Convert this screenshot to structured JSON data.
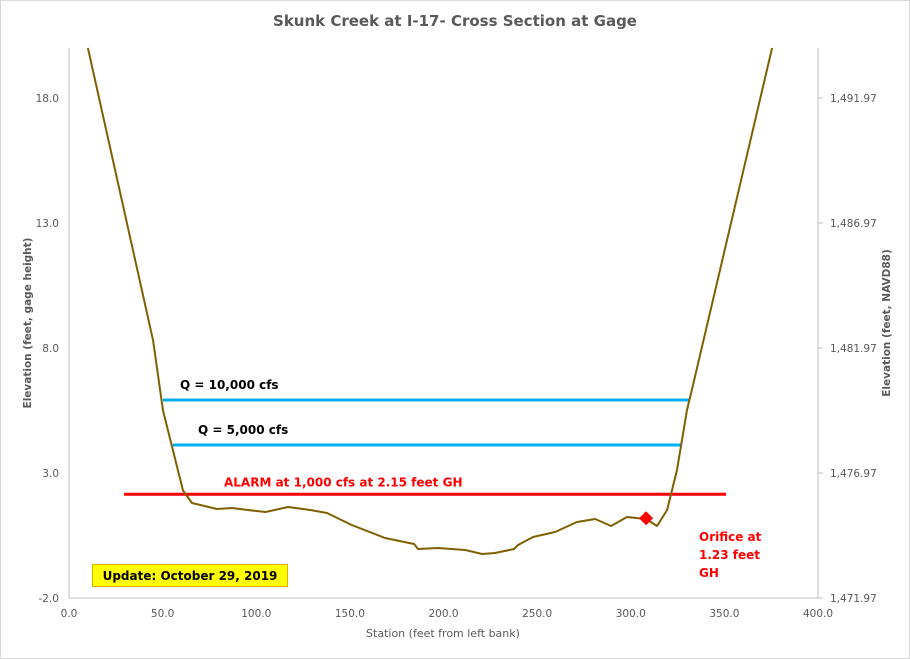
{
  "chart_data": {
    "type": "line",
    "title": "Skunk Creek at I-17- Cross Section at Gage",
    "xlabel": "Station (feet from left bank)",
    "ylabel": "Elevation  (feet, gage height)",
    "y2label": "Elevation  (feet, NAVD88)",
    "xlim": [
      0,
      400
    ],
    "ylim": [
      -2,
      20
    ],
    "x_ticks": [
      0,
      50,
      100,
      150,
      200,
      250,
      300,
      350,
      400
    ],
    "x_tick_labels": [
      "0.0",
      "50.0",
      "100.0",
      "150.0",
      "200.0",
      "250.0",
      "300.0",
      "350.0",
      "400.0"
    ],
    "y_ticks": [
      -2,
      3,
      8,
      13,
      18
    ],
    "y_tick_labels": [
      "-2.0",
      "3.0",
      "8.0",
      "13.0",
      "18.0"
    ],
    "y2_tick_labels": [
      "1,471.97",
      "1,476.97",
      "1,481.97",
      "1,486.97",
      "1,491.97"
    ],
    "grid": false,
    "series": [
      {
        "name": "Cross Section",
        "color": "#7f6000",
        "x": [
          10.1,
          44.9,
          50.2,
          60.9,
          65.7,
          79,
          87,
          95.5,
          105,
          117,
          128.8,
          137.8,
          151,
          168.8,
          184.3,
          186.4,
          197,
          211.6,
          220.6,
          227.5,
          237.7,
          239.8,
          247.8,
          259.6,
          271.3,
          281,
          289.5,
          298,
          308.2,
          314,
          319.4,
          324.7,
          330,
          333.9,
          375.5
        ],
        "y": [
          20.0,
          8.3,
          5.5,
          2.3,
          1.8,
          1.56,
          1.6,
          1.52,
          1.44,
          1.64,
          1.52,
          1.4,
          0.92,
          0.4,
          0.16,
          -0.04,
          0.0,
          -0.08,
          -0.24,
          -0.2,
          -0.04,
          0.12,
          0.44,
          0.64,
          1.04,
          1.16,
          0.88,
          1.24,
          1.16,
          0.88,
          1.52,
          3.12,
          5.5,
          6.72,
          20.0
        ]
      }
    ],
    "reference_lines": [
      {
        "name": "Q = 10,000 cfs",
        "label": "Q = 10,000  cfs",
        "y": 5.92,
        "x_start": 50.2,
        "x_end": 331,
        "color": "#00b0f0",
        "label_style": "black"
      },
      {
        "name": "Q = 5,000 cfs",
        "label": "Q = 5,000  cfs",
        "y": 4.12,
        "x_start": 55.5,
        "x_end": 326.8,
        "color": "#00b0f0",
        "label_style": "black"
      },
      {
        "name": "Alarm",
        "label": "ALARM at 1,000  cfs at 2.15  feet GH",
        "y": 2.15,
        "x_start": 29.4,
        "x_end": 350.9,
        "color": "#ff0000",
        "label_style": "red"
      }
    ],
    "markers": [
      {
        "name": "Orifice",
        "x": 308.2,
        "y": 1.23,
        "color": "#ff0000",
        "shape": "diamond",
        "label_lines": [
          "Orifice at",
          "1.23  feet",
          "GH"
        ]
      }
    ]
  },
  "update_note": "Update: October 29, 2019"
}
